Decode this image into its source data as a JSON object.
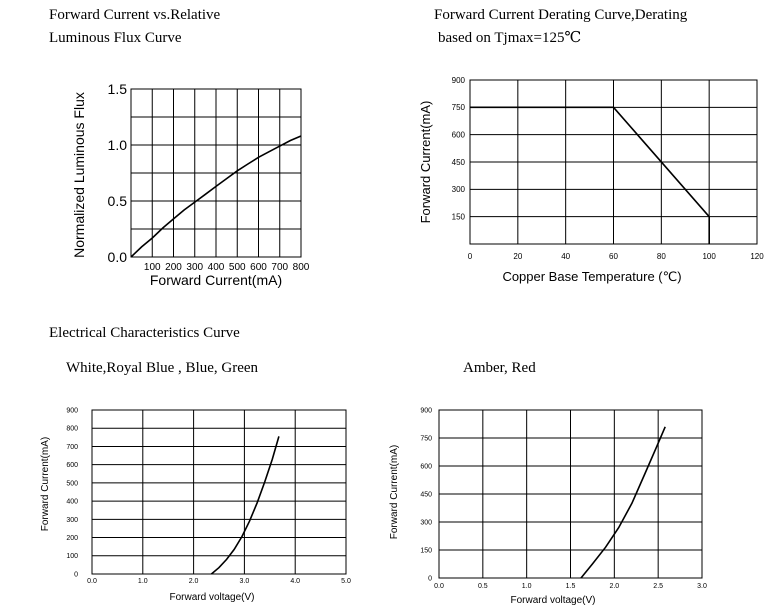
{
  "section_title": "Electrical Characteristics Curve",
  "chart_data": [
    {
      "type": "line",
      "title_lines": [
        "Forward Current vs.Relative",
        "Luminous Flux Curve"
      ],
      "xlabel": "Forward Current(mA)",
      "ylabel": "Normalized Luminous Flux",
      "x_ticks": [
        "100",
        "200",
        "300",
        "400",
        "500",
        "600",
        "700",
        "800"
      ],
      "y_ticks": [
        "0.0",
        "0.5",
        "1.0",
        "1.5"
      ],
      "xlim": [
        0,
        800
      ],
      "ylim": [
        0,
        1.5
      ],
      "grid": true,
      "series": [
        {
          "x": [
            0,
            50,
            100,
            150,
            200,
            250,
            300,
            350,
            400,
            450,
            500,
            550,
            600,
            650,
            700,
            750,
            800
          ],
          "y": [
            0,
            0.09,
            0.17,
            0.26,
            0.34,
            0.42,
            0.49,
            0.56,
            0.63,
            0.7,
            0.77,
            0.83,
            0.89,
            0.94,
            0.99,
            1.04,
            1.08
          ]
        }
      ]
    },
    {
      "type": "line",
      "title_lines": [
        "Forward Current Derating Curve,Derating",
        "based on Tjmax=125℃"
      ],
      "xlabel": "Copper Base Temperature (℃)",
      "ylabel": "Forward Current(mA)",
      "x_ticks": [
        "0",
        "20",
        "40",
        "60",
        "80",
        "100",
        "120"
      ],
      "y_ticks": [
        "150",
        "300",
        "450",
        "600",
        "750",
        "900"
      ],
      "xlim": [
        0,
        120
      ],
      "ylim": [
        0,
        900
      ],
      "grid": true,
      "series": [
        {
          "x": [
            0,
            60,
            100,
            100
          ],
          "y": [
            750,
            750,
            150,
            0
          ]
        }
      ]
    },
    {
      "type": "line",
      "title_lines": [
        "White,Royal Blue , Blue, Green"
      ],
      "xlabel": "Forward voltage(V)",
      "ylabel": "Forward Current(mA)",
      "x_ticks": [
        "0.0",
        "1.0",
        "2.0",
        "3.0",
        "4.0",
        "5.0"
      ],
      "y_ticks": [
        "0",
        "100",
        "200",
        "300",
        "400",
        "500",
        "600",
        "700",
        "800",
        "900"
      ],
      "xlim": [
        0,
        5
      ],
      "ylim": [
        0,
        900
      ],
      "grid": true,
      "series": [
        {
          "x": [
            2.35,
            2.5,
            2.65,
            2.8,
            2.95,
            3.1,
            3.25,
            3.4,
            3.55,
            3.68
          ],
          "y": [
            0,
            35,
            80,
            135,
            205,
            290,
            390,
            505,
            630,
            755
          ]
        }
      ]
    },
    {
      "type": "line",
      "title_lines": [
        "Amber, Red"
      ],
      "xlabel": "Forward voltage(V)",
      "ylabel": "Forward Current(mA)",
      "x_ticks": [
        "0.0",
        "0.5",
        "1.0",
        "1.5",
        "2.0",
        "2.5",
        "3.0"
      ],
      "y_ticks": [
        "0",
        "150",
        "300",
        "450",
        "600",
        "750",
        "900"
      ],
      "xlim": [
        0,
        3
      ],
      "ylim": [
        0,
        900
      ],
      "grid": true,
      "series": [
        {
          "x": [
            1.62,
            1.75,
            1.9,
            2.05,
            2.2,
            2.35,
            2.48,
            2.58
          ],
          "y": [
            0,
            75,
            165,
            270,
            400,
            560,
            700,
            810
          ]
        }
      ]
    }
  ]
}
